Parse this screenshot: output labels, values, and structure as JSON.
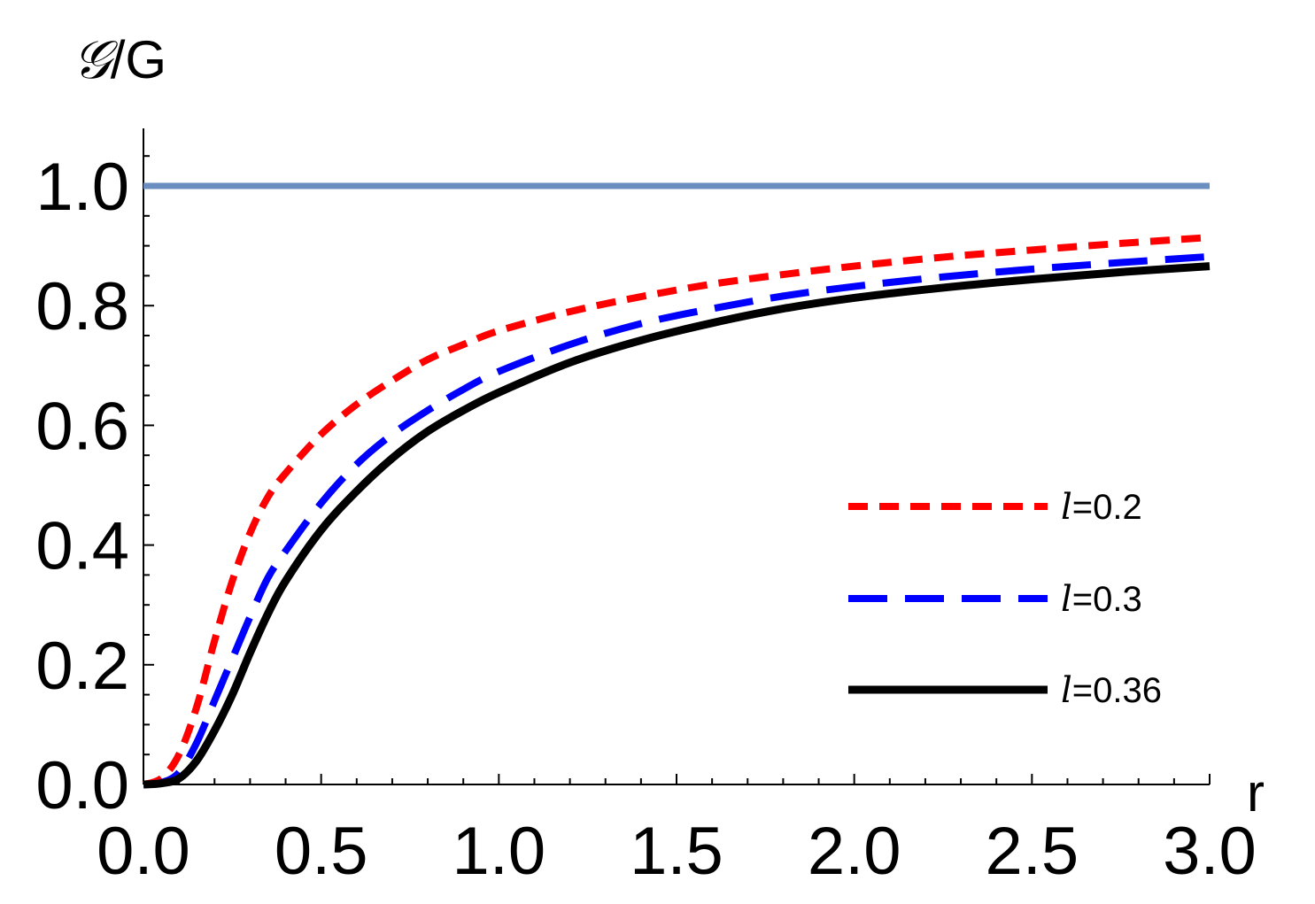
{
  "chart_data": {
    "type": "line",
    "title": "",
    "xlabel": "r",
    "ylabel": "𝒢/G",
    "ylabel_script": "𝒢",
    "ylabel_rest": "/G",
    "xlim": [
      0,
      3
    ],
    "ylim": [
      0,
      1.1
    ],
    "grid": false,
    "legend_position": "right-middle",
    "x_ticks": [
      0.0,
      0.5,
      1.0,
      1.5,
      2.0,
      2.5,
      3.0
    ],
    "x_tick_labels": [
      "0.0",
      "0.5",
      "1.0",
      "1.5",
      "2.0",
      "2.5",
      "3.0"
    ],
    "y_ticks": [
      0.0,
      0.2,
      0.4,
      0.6,
      0.8,
      1.0
    ],
    "y_tick_labels": [
      "0.0",
      "0.2",
      "0.4",
      "0.6",
      "0.8",
      "1.0"
    ],
    "reference_line": {
      "y": 1.0,
      "color": "#6a8ebf"
    },
    "x": [
      0.0,
      0.05,
      0.1,
      0.15,
      0.2,
      0.25,
      0.3,
      0.35,
      0.4,
      0.5,
      0.6,
      0.7,
      0.8,
      0.9,
      1.0,
      1.2,
      1.4,
      1.6,
      1.8,
      2.0,
      2.25,
      2.5,
      2.75,
      3.0
    ],
    "series": [
      {
        "name": "l=0.2",
        "legend_prefix": "l",
        "legend_suffix": "=0.2",
        "color": "#ff0000",
        "dash": "short",
        "values": [
          0.0,
          0.01,
          0.05,
          0.13,
          0.24,
          0.34,
          0.42,
          0.48,
          0.52,
          0.585,
          0.635,
          0.675,
          0.71,
          0.735,
          0.758,
          0.79,
          0.815,
          0.836,
          0.852,
          0.866,
          0.881,
          0.893,
          0.904,
          0.914
        ]
      },
      {
        "name": "l=0.3",
        "legend_prefix": "l",
        "legend_suffix": "=0.3",
        "color": "#0000ff",
        "dash": "long",
        "values": [
          0.0,
          0.003,
          0.02,
          0.07,
          0.14,
          0.21,
          0.28,
          0.345,
          0.39,
          0.47,
          0.535,
          0.585,
          0.625,
          0.66,
          0.69,
          0.735,
          0.77,
          0.795,
          0.816,
          0.832,
          0.848,
          0.861,
          0.872,
          0.882
        ]
      },
      {
        "name": "l=0.36",
        "legend_prefix": "l",
        "legend_suffix": "=0.36",
        "color": "#000000",
        "dash": "solid",
        "values": [
          0.0,
          0.002,
          0.01,
          0.04,
          0.09,
          0.15,
          0.22,
          0.285,
          0.34,
          0.425,
          0.49,
          0.545,
          0.59,
          0.625,
          0.655,
          0.705,
          0.742,
          0.771,
          0.795,
          0.813,
          0.83,
          0.844,
          0.856,
          0.866
        ]
      }
    ]
  }
}
